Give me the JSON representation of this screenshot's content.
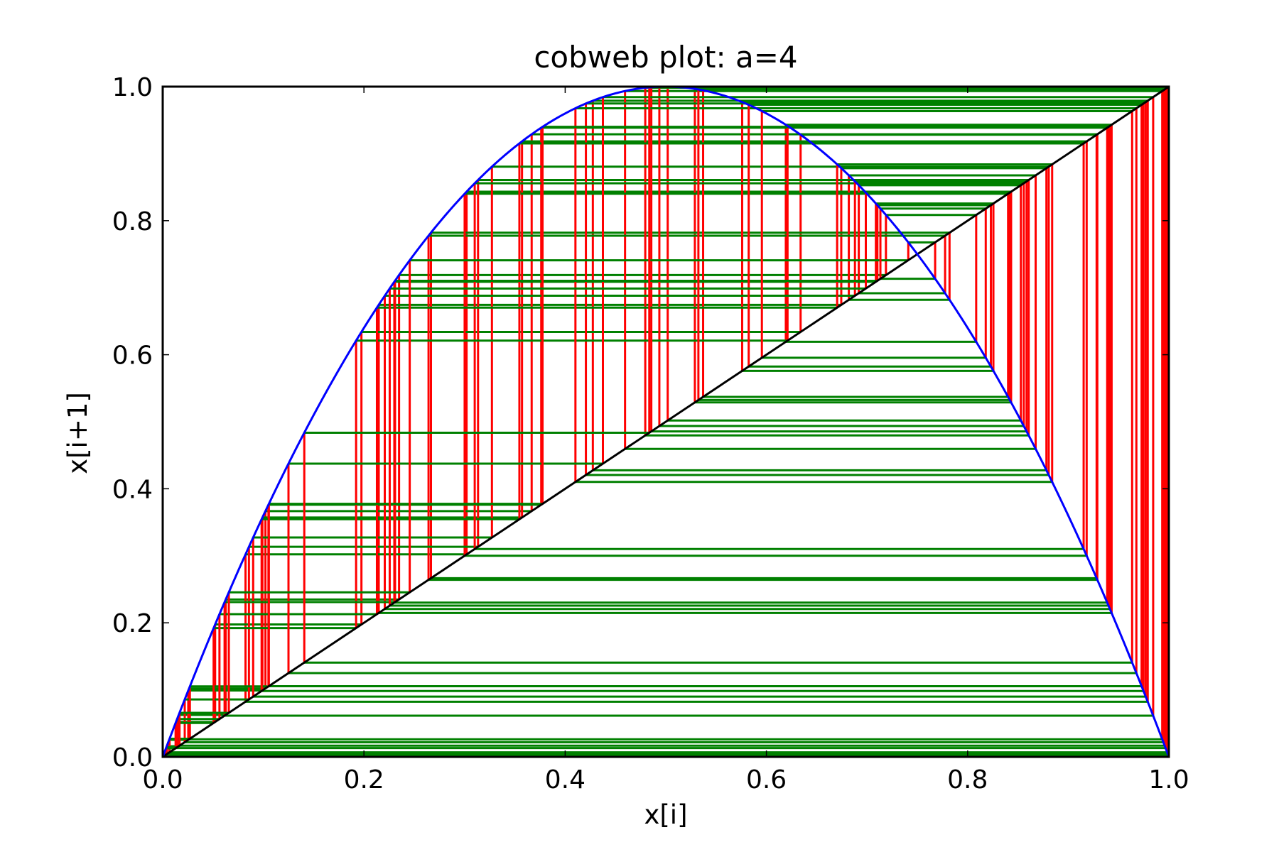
{
  "chart_data": {
    "type": "line",
    "title": "cobweb plot: a=4",
    "xlabel": "x[i]",
    "ylabel": "x[i+1]",
    "xlim": [
      0.0,
      1.0
    ],
    "ylim": [
      0.0,
      1.0
    ],
    "grid": false,
    "legend": "none",
    "xticks": [
      "0.0",
      "0.2",
      "0.4",
      "0.6",
      "0.8",
      "1.0"
    ],
    "yticks": [
      "0.0",
      "0.2",
      "0.4",
      "0.6",
      "0.8",
      "1.0"
    ],
    "xtick_values": [
      0.0,
      0.2,
      0.4,
      0.6,
      0.8,
      1.0
    ],
    "ytick_values": [
      0.0,
      0.2,
      0.4,
      0.6,
      0.8,
      1.0
    ],
    "series": [
      {
        "role": "logistic-map",
        "function": "y = 4x(1-x)",
        "color": "#0000ff"
      },
      {
        "role": "identity-line",
        "function": "y = x",
        "color": "#000000"
      },
      {
        "role": "vertical-steps",
        "color": "#ff0000"
      },
      {
        "role": "horizontal-steps",
        "color": "#008000"
      }
    ],
    "a": 4,
    "iterates": [
      0.001,
      0.004,
      0.0159,
      0.0626,
      0.2349,
      0.7188,
      0.8085,
      0.6193,
      0.9431,
      0.2147,
      0.6744,
      0.8783,
      0.4275,
      0.979,
      0.0823,
      0.302,
      0.8432,
      0.5289,
      0.9967,
      0.0132,
      0.0521,
      0.1975,
      0.634,
      0.9282,
      0.2666,
      0.782,
      0.6819,
      0.8676,
      0.4595,
      0.9934,
      0.0262,
      0.1021,
      0.3667,
      0.9289,
      0.2642,
      0.7776,
      0.6918,
      0.8529,
      0.5019,
      1.0,
      0.0001,
      0.0004,
      0.0016,
      0.0064,
      0.0254,
      0.0991,
      0.3571,
      0.9183,
      0.3001,
      0.8402,
      0.5371,
      0.9945,
      0.0219,
      0.0857,
      0.3134,
      0.8607,
      0.4796,
      0.9983,
      0.0068,
      0.027,
      0.1051,
      0.3762,
      0.9387,
      0.2302,
      0.7088,
      0.8256,
      0.5759,
      0.977,
      0.0899,
      0.3272,
      0.8806,
      0.4206,
      0.9748,
      0.0983,
      0.3545,
      0.9153,
      0.3101,
      0.8558,
      0.4936,
      0.9998,
      0.0008,
      0.0032,
      0.0128,
      0.0506,
      0.1922,
      0.621,
      0.9414,
      0.2207,
      0.688,
      0.8586,
      0.4856,
      0.9991,
      0.0036,
      0.0143,
      0.0564,
      0.2129,
      0.6703,
      0.884,
      0.4102,
      0.9677,
      0.125,
      0.4375,
      0.9844,
      0.0615,
      0.2309,
      0.7103,
      0.8231,
      0.5824,
      0.9729,
      0.1055,
      0.3775,
      0.94,
      0.2256,
      0.6988,
      0.8419,
      0.5324,
      0.9958,
      0.0167,
      0.0657,
      0.2455,
      0.741,
      0.7677,
      0.7133,
      0.818,
      0.5955,
      0.9635,
      0.1407,
      0.4836,
      0.9989,
      0.0044
    ]
  }
}
